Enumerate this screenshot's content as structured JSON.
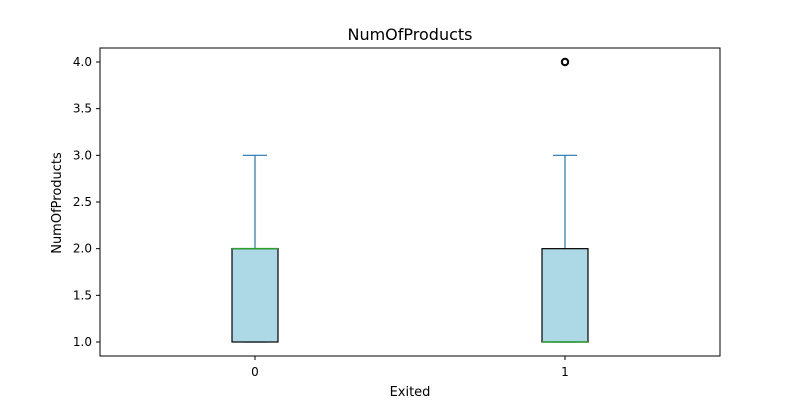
{
  "chart_data": {
    "type": "box",
    "title": "NumOfProducts",
    "xlabel": "Exited",
    "ylabel": "NumOfProducts",
    "categories": [
      "0",
      "1"
    ],
    "ylim": [
      0.85,
      4.15
    ],
    "yticks": [
      "1.0",
      "1.5",
      "2.0",
      "2.5",
      "3.0",
      "3.5",
      "4.0"
    ],
    "grid": false,
    "boxes": [
      {
        "category": "0",
        "whisker_low": 1,
        "q1": 1,
        "median": 2,
        "q3": 2,
        "whisker_high": 3,
        "outliers": []
      },
      {
        "category": "1",
        "whisker_low": 1,
        "q1": 1,
        "median": 1,
        "q3": 2,
        "whisker_high": 3,
        "outliers": [
          4
        ]
      }
    ],
    "colors": {
      "box_fill": "#add8e6",
      "box_edge": "#000000",
      "whisker": "#1f77b4",
      "median": "#2ca02c",
      "outlier": "#000000"
    }
  }
}
